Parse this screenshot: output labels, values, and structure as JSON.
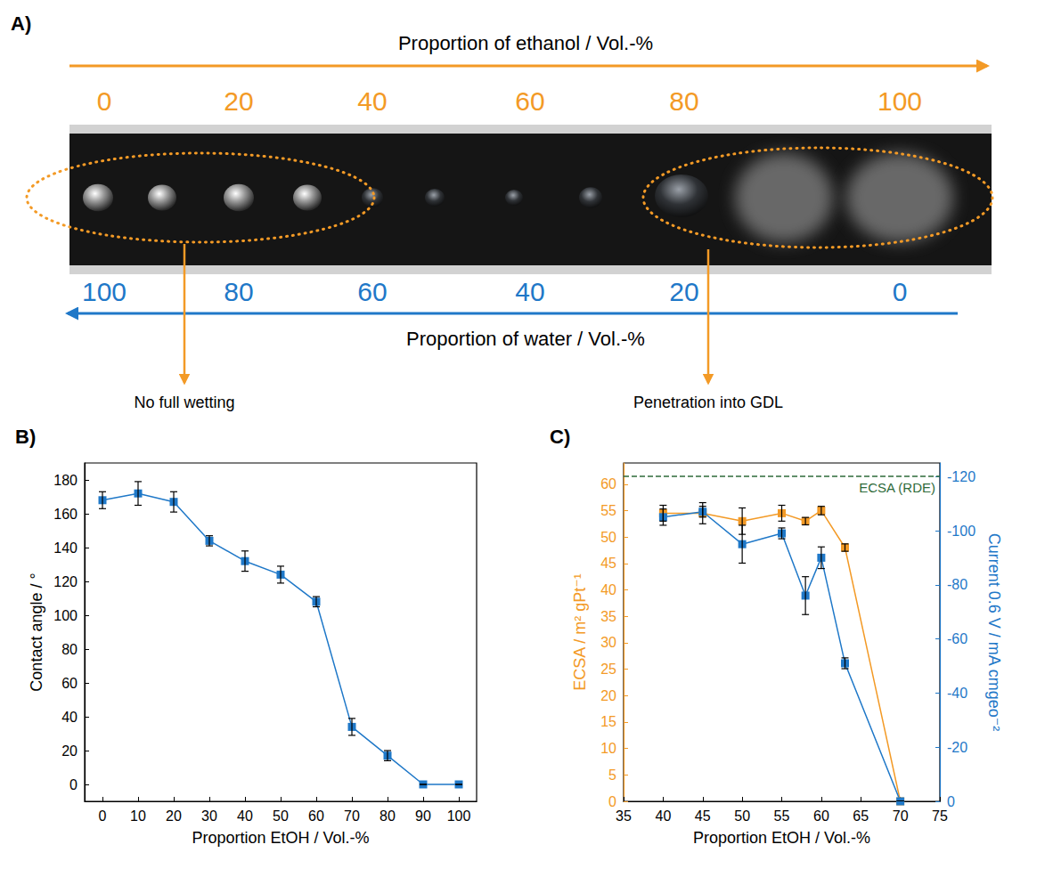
{
  "photo": {
    "panel_label": "A)",
    "top_axis": {
      "title": "Proportion of ethanol / Vol.-%",
      "ticks": [
        0,
        20,
        40,
        60,
        80,
        100
      ],
      "color": "#f39a26"
    },
    "bottom_axis": {
      "title": "Proportion of water / Vol.-%",
      "ticks": [
        100,
        80,
        60,
        40,
        20,
        0
      ],
      "color": "#1f78c8"
    },
    "annotations": [
      "No full wetting",
      "Penetration into GDL"
    ]
  },
  "chart_data": [
    {
      "panel_label": "B)",
      "type": "line",
      "xlabel": "Proportion EtOH / Vol.-%",
      "ylabel": "Contact angle / °",
      "x": [
        0,
        10,
        20,
        30,
        40,
        50,
        60,
        70,
        80,
        90,
        100
      ],
      "series": [
        {
          "color": "#1f78c8",
          "marker": "square",
          "axis": "y",
          "values": [
            168,
            172,
            167,
            144,
            132,
            124,
            108,
            34,
            17,
            0,
            0
          ],
          "errors": [
            5,
            7,
            6,
            3,
            6,
            5,
            3,
            5,
            3,
            0,
            0
          ]
        }
      ],
      "xlim": [
        -5,
        105
      ],
      "xticks": [
        0,
        10,
        20,
        30,
        40,
        50,
        60,
        70,
        80,
        90,
        100
      ],
      "ylim": [
        -10,
        190
      ],
      "yticks": [
        0,
        20,
        40,
        60,
        80,
        100,
        120,
        140,
        160,
        180
      ],
      "grid": false
    },
    {
      "panel_label": "C)",
      "type": "line",
      "xlabel": "Proportion EtOH / Vol.-%",
      "ylabel": "ECSA / m² gPt⁻¹",
      "y2label": "Current 0.6 V / mA cmgeo⁻²",
      "x": [
        40,
        45,
        50,
        55,
        58,
        60,
        63,
        70
      ],
      "series": [
        {
          "color": "#f39a26",
          "marker": "square",
          "axis": "y",
          "values": [
            54.5,
            54.5,
            53,
            54.5,
            53,
            55,
            48,
            0
          ],
          "errors": [
            1.5,
            2,
            2.5,
            1.5,
            0.7,
            0.8,
            0.7,
            0
          ]
        },
        {
          "color": "#1f78c8",
          "marker": "square",
          "axis": "y2",
          "values": [
            -105,
            -107,
            -95,
            -99,
            -76,
            -90,
            -51,
            0
          ],
          "errors": [
            3,
            2,
            7,
            2,
            7,
            4,
            2,
            0
          ]
        }
      ],
      "annotations": [
        {
          "text": "ECSA (RDE)",
          "y": 61.5,
          "color": "#2e6b3a",
          "line_style": "dashed"
        }
      ],
      "xlim": [
        35,
        75
      ],
      "xticks": [
        35,
        40,
        45,
        50,
        55,
        60,
        65,
        70,
        75
      ],
      "ylim": [
        0,
        64
      ],
      "yticks": [
        0,
        5,
        10,
        15,
        20,
        25,
        30,
        35,
        40,
        45,
        50,
        55,
        60
      ],
      "y2lim": [
        0,
        -125
      ],
      "y2ticks": [
        0,
        -20,
        -40,
        -60,
        -80,
        -100,
        -120
      ],
      "grid": false
    }
  ]
}
